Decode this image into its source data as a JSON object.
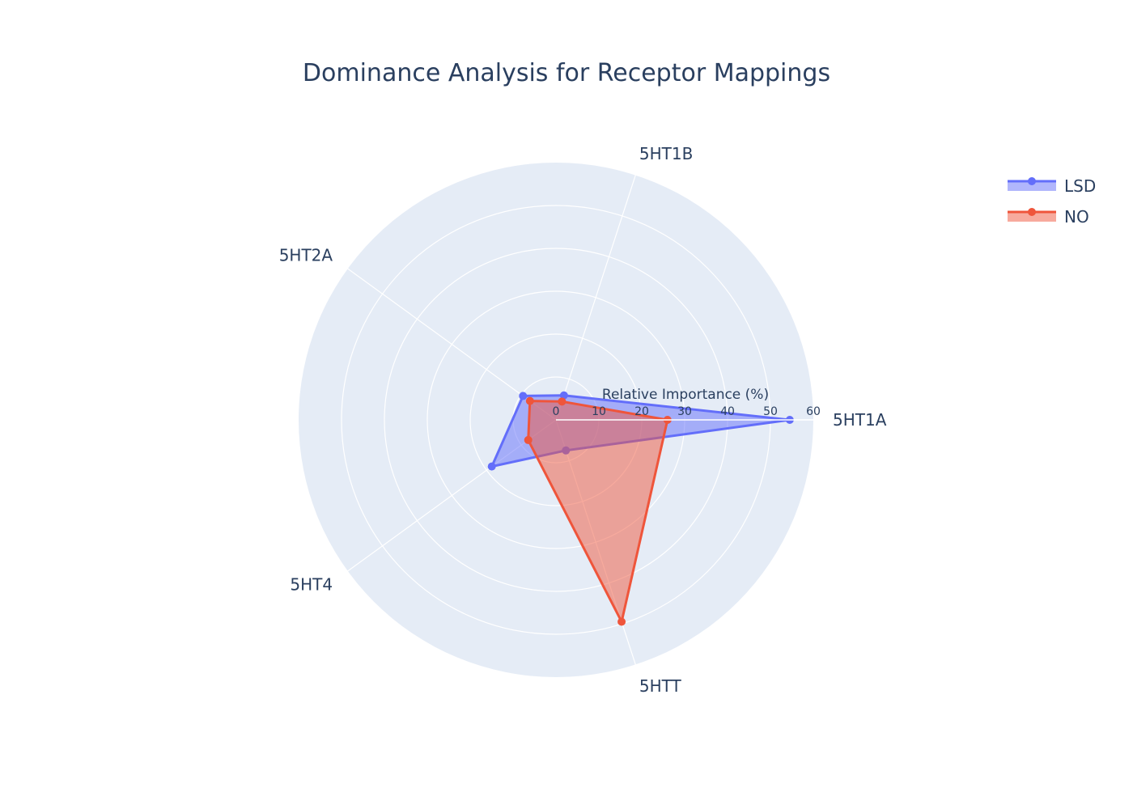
{
  "chart_data": {
    "type": "radar",
    "title": "Dominance Analysis for Receptor Mappings",
    "radial_axis_title": "Relative Importance (%)",
    "radial_range": [
      0,
      60
    ],
    "radial_ticks": [
      "0",
      "10",
      "20",
      "30",
      "40",
      "50",
      "60"
    ],
    "categories": [
      "5HT1A",
      "5HT1B",
      "5HT2A",
      "5HT4",
      "5HTT"
    ],
    "series": [
      {
        "name": "LSD",
        "values": [
          54.5,
          6,
          9.5,
          18.5,
          7.5
        ],
        "color": "#636efa"
      },
      {
        "name": "NO",
        "values": [
          26,
          4.5,
          7.5,
          8,
          49.5
        ],
        "color": "#ef553b"
      }
    ],
    "grid": true,
    "legend_position": "top-right",
    "colors": {
      "polar_bg": "#e5ecf6",
      "grid": "#ffffff",
      "text": "#2a3f5f"
    }
  }
}
